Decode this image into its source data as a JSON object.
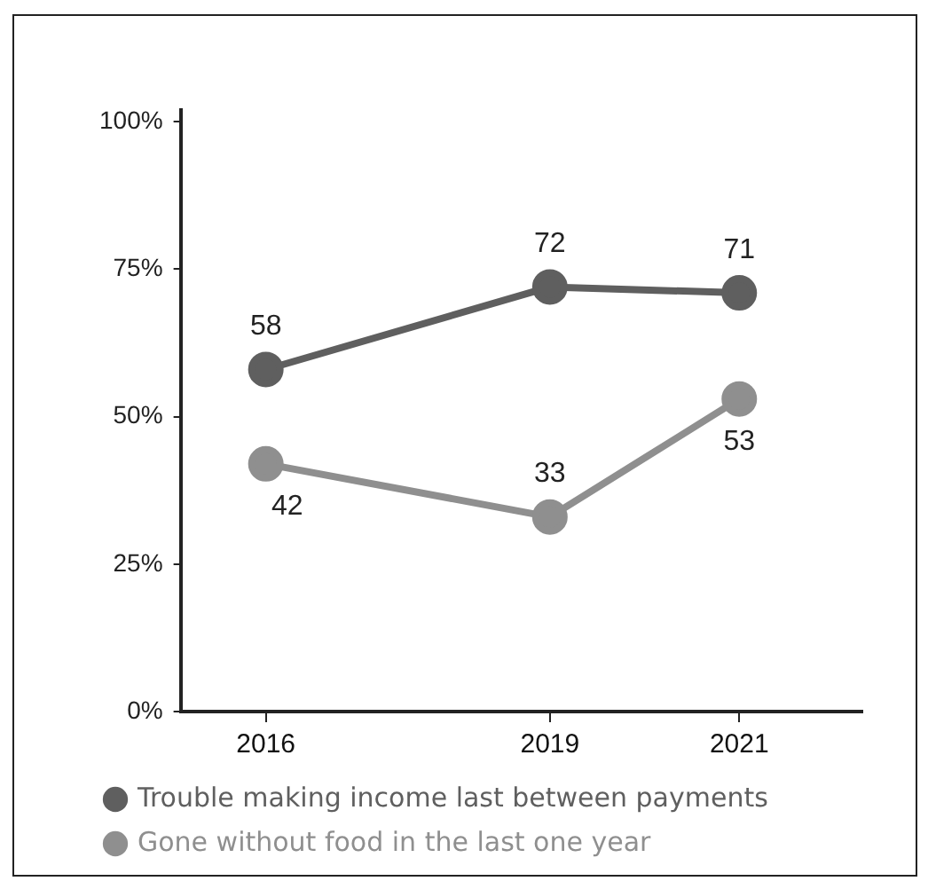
{
  "chart_data": {
    "type": "line",
    "x": [
      2016,
      2019,
      2021
    ],
    "series": [
      {
        "name": "Trouble making income last between payments",
        "color": "#5f5f5f",
        "values": [
          58,
          72,
          71
        ]
      },
      {
        "name": "Gone without food in the last one year",
        "color": "#8f8f8f",
        "values": [
          42,
          33,
          53
        ]
      }
    ],
    "xlim": [
      2015.1,
      2022.3
    ],
    "xticks": [
      2016,
      2019,
      2021
    ],
    "ylim": [
      0,
      102
    ],
    "yticks": [
      {
        "value": 0,
        "label": "0%"
      },
      {
        "value": 25,
        "label": "25%"
      },
      {
        "value": 50,
        "label": "50%"
      },
      {
        "value": 75,
        "label": "75%"
      },
      {
        "value": 100,
        "label": "100%"
      }
    ],
    "grid": false,
    "legend": "bottom",
    "marker": "circle",
    "line_style": "solid",
    "data_labels": true
  }
}
